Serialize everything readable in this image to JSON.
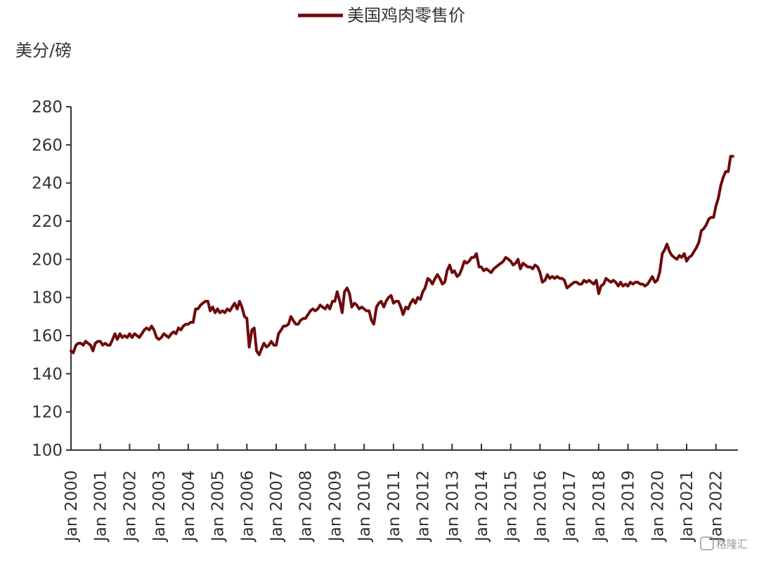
{
  "chart_data": {
    "type": "line",
    "title": "",
    "ylabel": "美分/磅",
    "xlabel": "",
    "ylim": [
      100,
      280
    ],
    "yticks": [
      100,
      120,
      140,
      160,
      180,
      200,
      220,
      240,
      260,
      280
    ],
    "xticks": [
      {
        "year": 2000,
        "label": "Jan 2000"
      },
      {
        "year": 2001,
        "label": "Jan 2001"
      },
      {
        "year": 2002,
        "label": "Jan 2002"
      },
      {
        "year": 2003,
        "label": "Jan 2003"
      },
      {
        "year": 2004,
        "label": "Jan 2004"
      },
      {
        "year": 2005,
        "label": "Jan 2005"
      },
      {
        "year": 2006,
        "label": "Jan 2006"
      },
      {
        "year": 2007,
        "label": "Jan 2007"
      },
      {
        "year": 2008,
        "label": "Jan 2008"
      },
      {
        "year": 2009,
        "label": "Jan 2009"
      },
      {
        "year": 2010,
        "label": "Jan 2010"
      },
      {
        "year": 2011,
        "label": "Jan 2011"
      },
      {
        "year": 2012,
        "label": "Jan 2012"
      },
      {
        "year": 2013,
        "label": "Jan 2013"
      },
      {
        "year": 2014,
        "label": "Jan 2014"
      },
      {
        "year": 2015,
        "label": "Jan 2015"
      },
      {
        "year": 2016,
        "label": "Jan 2016"
      },
      {
        "year": 2017,
        "label": "Jan 2017"
      },
      {
        "year": 2018,
        "label": "Jan 2018"
      },
      {
        "year": 2019,
        "label": "Jan 2019"
      },
      {
        "year": 2020,
        "label": "Jan 2020"
      },
      {
        "year": 2021,
        "label": "Jan 2021"
      },
      {
        "year": 2022,
        "label": "Jan 2022"
      }
    ],
    "xlim": [
      2000.0,
      2022.75
    ],
    "grid": false,
    "legend_position": "top-center",
    "series": [
      {
        "name": "美国鸡肉零售价",
        "color": "#6e0b0b",
        "points": [
          [
            2000.0,
            152
          ],
          [
            2000.08,
            151
          ],
          [
            2000.17,
            155
          ],
          [
            2000.25,
            156
          ],
          [
            2000.33,
            156
          ],
          [
            2000.42,
            155
          ],
          [
            2000.5,
            157
          ],
          [
            2000.58,
            156
          ],
          [
            2000.67,
            155
          ],
          [
            2000.75,
            152
          ],
          [
            2000.83,
            156
          ],
          [
            2000.92,
            157
          ],
          [
            2001.0,
            157
          ],
          [
            2001.08,
            155
          ],
          [
            2001.17,
            156
          ],
          [
            2001.25,
            155
          ],
          [
            2001.33,
            155
          ],
          [
            2001.42,
            158
          ],
          [
            2001.5,
            161
          ],
          [
            2001.58,
            158
          ],
          [
            2001.67,
            161
          ],
          [
            2001.75,
            159
          ],
          [
            2001.83,
            160
          ],
          [
            2001.92,
            159
          ],
          [
            2002.0,
            161
          ],
          [
            2002.08,
            159
          ],
          [
            2002.17,
            161
          ],
          [
            2002.25,
            160
          ],
          [
            2002.33,
            159
          ],
          [
            2002.42,
            161
          ],
          [
            2002.5,
            163
          ],
          [
            2002.58,
            164
          ],
          [
            2002.67,
            163
          ],
          [
            2002.75,
            165
          ],
          [
            2002.83,
            163
          ],
          [
            2002.92,
            159
          ],
          [
            2003.0,
            158
          ],
          [
            2003.08,
            159
          ],
          [
            2003.17,
            161
          ],
          [
            2003.25,
            160
          ],
          [
            2003.33,
            159
          ],
          [
            2003.42,
            161
          ],
          [
            2003.5,
            162
          ],
          [
            2003.58,
            161
          ],
          [
            2003.67,
            164
          ],
          [
            2003.75,
            163
          ],
          [
            2003.83,
            165
          ],
          [
            2003.92,
            166
          ],
          [
            2004.0,
            166
          ],
          [
            2004.08,
            167
          ],
          [
            2004.17,
            167
          ],
          [
            2004.25,
            174
          ],
          [
            2004.33,
            174
          ],
          [
            2004.42,
            176
          ],
          [
            2004.5,
            177
          ],
          [
            2004.58,
            178
          ],
          [
            2004.67,
            178
          ],
          [
            2004.75,
            173
          ],
          [
            2004.83,
            175
          ],
          [
            2004.92,
            172
          ],
          [
            2005.0,
            174
          ],
          [
            2005.08,
            172
          ],
          [
            2005.17,
            173
          ],
          [
            2005.25,
            172
          ],
          [
            2005.33,
            174
          ],
          [
            2005.42,
            173
          ],
          [
            2005.5,
            175
          ],
          [
            2005.58,
            177
          ],
          [
            2005.67,
            174
          ],
          [
            2005.75,
            178
          ],
          [
            2005.83,
            175
          ],
          [
            2005.92,
            170
          ],
          [
            2006.0,
            169
          ],
          [
            2006.08,
            154
          ],
          [
            2006.17,
            163
          ],
          [
            2006.25,
            164
          ],
          [
            2006.33,
            152
          ],
          [
            2006.42,
            150
          ],
          [
            2006.5,
            153
          ],
          [
            2006.58,
            156
          ],
          [
            2006.67,
            154
          ],
          [
            2006.75,
            155
          ],
          [
            2006.83,
            157
          ],
          [
            2006.92,
            155
          ],
          [
            2007.0,
            155
          ],
          [
            2007.08,
            161
          ],
          [
            2007.17,
            163
          ],
          [
            2007.25,
            165
          ],
          [
            2007.33,
            165
          ],
          [
            2007.42,
            166
          ],
          [
            2007.5,
            170
          ],
          [
            2007.58,
            168
          ],
          [
            2007.67,
            166
          ],
          [
            2007.75,
            166
          ],
          [
            2007.83,
            168
          ],
          [
            2007.92,
            169
          ],
          [
            2008.0,
            169
          ],
          [
            2008.08,
            171
          ],
          [
            2008.17,
            173
          ],
          [
            2008.25,
            174
          ],
          [
            2008.33,
            173
          ],
          [
            2008.42,
            174
          ],
          [
            2008.5,
            176
          ],
          [
            2008.58,
            175
          ],
          [
            2008.67,
            174
          ],
          [
            2008.75,
            176
          ],
          [
            2008.83,
            174
          ],
          [
            2008.92,
            178
          ],
          [
            2009.0,
            178
          ],
          [
            2009.08,
            183
          ],
          [
            2009.17,
            178
          ],
          [
            2009.25,
            172
          ],
          [
            2009.33,
            183
          ],
          [
            2009.42,
            185
          ],
          [
            2009.5,
            182
          ],
          [
            2009.58,
            175
          ],
          [
            2009.67,
            177
          ],
          [
            2009.75,
            176
          ],
          [
            2009.83,
            174
          ],
          [
            2009.92,
            175
          ],
          [
            2010.0,
            174
          ],
          [
            2010.08,
            173
          ],
          [
            2010.17,
            173
          ],
          [
            2010.25,
            168
          ],
          [
            2010.33,
            166
          ],
          [
            2010.42,
            175
          ],
          [
            2010.5,
            177
          ],
          [
            2010.58,
            178
          ],
          [
            2010.67,
            175
          ],
          [
            2010.75,
            178
          ],
          [
            2010.83,
            180
          ],
          [
            2010.92,
            181
          ],
          [
            2011.0,
            177
          ],
          [
            2011.08,
            178
          ],
          [
            2011.17,
            178
          ],
          [
            2011.25,
            175
          ],
          [
            2011.33,
            171
          ],
          [
            2011.42,
            175
          ],
          [
            2011.5,
            174
          ],
          [
            2011.58,
            177
          ],
          [
            2011.67,
            179
          ],
          [
            2011.75,
            177
          ],
          [
            2011.83,
            180
          ],
          [
            2011.92,
            179
          ],
          [
            2012.0,
            183
          ],
          [
            2012.08,
            185
          ],
          [
            2012.17,
            190
          ],
          [
            2012.25,
            189
          ],
          [
            2012.33,
            187
          ],
          [
            2012.42,
            190
          ],
          [
            2012.5,
            192
          ],
          [
            2012.58,
            190
          ],
          [
            2012.67,
            187
          ],
          [
            2012.75,
            188
          ],
          [
            2012.83,
            194
          ],
          [
            2012.92,
            197
          ],
          [
            2013.0,
            193
          ],
          [
            2013.08,
            194
          ],
          [
            2013.17,
            191
          ],
          [
            2013.25,
            192
          ],
          [
            2013.33,
            195
          ],
          [
            2013.42,
            199
          ],
          [
            2013.5,
            198
          ],
          [
            2013.58,
            199
          ],
          [
            2013.67,
            201
          ],
          [
            2013.75,
            201
          ],
          [
            2013.83,
            203
          ],
          [
            2013.92,
            196
          ],
          [
            2014.0,
            196
          ],
          [
            2014.08,
            194
          ],
          [
            2014.17,
            195
          ],
          [
            2014.25,
            194
          ],
          [
            2014.33,
            193
          ],
          [
            2014.42,
            195
          ],
          [
            2014.5,
            196
          ],
          [
            2014.58,
            197
          ],
          [
            2014.67,
            198
          ],
          [
            2014.75,
            199
          ],
          [
            2014.83,
            201
          ],
          [
            2014.92,
            200
          ],
          [
            2015.0,
            199
          ],
          [
            2015.08,
            197
          ],
          [
            2015.17,
            198
          ],
          [
            2015.25,
            200
          ],
          [
            2015.33,
            195
          ],
          [
            2015.42,
            198
          ],
          [
            2015.5,
            197
          ],
          [
            2015.58,
            196
          ],
          [
            2015.67,
            196
          ],
          [
            2015.75,
            195
          ],
          [
            2015.83,
            197
          ],
          [
            2015.92,
            196
          ],
          [
            2016.0,
            193
          ],
          [
            2016.08,
            188
          ],
          [
            2016.17,
            189
          ],
          [
            2016.25,
            192
          ],
          [
            2016.33,
            190
          ],
          [
            2016.42,
            191
          ],
          [
            2016.5,
            190
          ],
          [
            2016.58,
            191
          ],
          [
            2016.67,
            190
          ],
          [
            2016.75,
            190
          ],
          [
            2016.83,
            189
          ],
          [
            2016.92,
            185
          ],
          [
            2017.0,
            186
          ],
          [
            2017.08,
            187
          ],
          [
            2017.17,
            188
          ],
          [
            2017.25,
            188
          ],
          [
            2017.33,
            187
          ],
          [
            2017.42,
            187
          ],
          [
            2017.5,
            189
          ],
          [
            2017.58,
            188
          ],
          [
            2017.67,
            189
          ],
          [
            2017.75,
            188
          ],
          [
            2017.83,
            187
          ],
          [
            2017.92,
            189
          ],
          [
            2018.0,
            182
          ],
          [
            2018.08,
            186
          ],
          [
            2018.17,
            187
          ],
          [
            2018.25,
            190
          ],
          [
            2018.33,
            189
          ],
          [
            2018.42,
            188
          ],
          [
            2018.5,
            189
          ],
          [
            2018.58,
            188
          ],
          [
            2018.67,
            186
          ],
          [
            2018.75,
            188
          ],
          [
            2018.83,
            186
          ],
          [
            2018.92,
            187
          ],
          [
            2019.0,
            186
          ],
          [
            2019.08,
            188
          ],
          [
            2019.17,
            187
          ],
          [
            2019.25,
            188
          ],
          [
            2019.33,
            188
          ],
          [
            2019.42,
            187
          ],
          [
            2019.5,
            187
          ],
          [
            2019.58,
            186
          ],
          [
            2019.67,
            187
          ],
          [
            2019.75,
            189
          ],
          [
            2019.83,
            191
          ],
          [
            2019.92,
            188
          ],
          [
            2020.0,
            189
          ],
          [
            2020.08,
            193
          ],
          [
            2020.17,
            203
          ],
          [
            2020.25,
            205
          ],
          [
            2020.33,
            208
          ],
          [
            2020.42,
            204
          ],
          [
            2020.5,
            202
          ],
          [
            2020.58,
            201
          ],
          [
            2020.67,
            200
          ],
          [
            2020.75,
            202
          ],
          [
            2020.83,
            201
          ],
          [
            2020.92,
            203
          ],
          [
            2021.0,
            199
          ],
          [
            2021.08,
            201
          ],
          [
            2021.17,
            202
          ],
          [
            2021.25,
            204
          ],
          [
            2021.33,
            206
          ],
          [
            2021.42,
            209
          ],
          [
            2021.5,
            215
          ],
          [
            2021.58,
            216
          ],
          [
            2021.67,
            218
          ],
          [
            2021.75,
            221
          ],
          [
            2021.83,
            222
          ],
          [
            2021.92,
            222
          ],
          [
            2022.0,
            228
          ],
          [
            2022.08,
            232
          ],
          [
            2022.17,
            239
          ],
          [
            2022.25,
            243
          ],
          [
            2022.33,
            246
          ],
          [
            2022.42,
            246
          ],
          [
            2022.5,
            254
          ],
          [
            2022.58,
            254
          ]
        ]
      }
    ]
  },
  "watermark": {
    "text": "格隆汇"
  },
  "colors": {
    "line": "#6e0b0b",
    "axis": "#333333",
    "text": "#333333"
  }
}
